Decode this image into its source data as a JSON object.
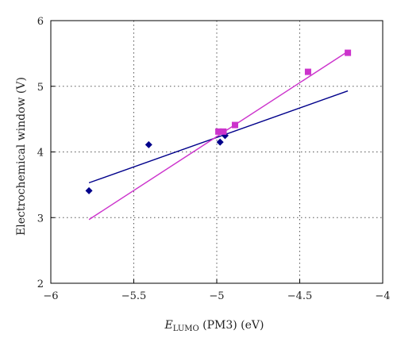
{
  "chart_data": {
    "type": "scatter",
    "xlabel": {
      "main": "E",
      "sub": "LUMO",
      "rest": " (PM3) (eV)"
    },
    "ylabel": "Electrochemical window (V)",
    "xlim": [
      -6,
      -4
    ],
    "ylim": [
      2,
      6
    ],
    "xticks": [
      -6,
      -5.5,
      -5,
      -4.5,
      -4
    ],
    "yticks": [
      2,
      3,
      4,
      5,
      6
    ],
    "xtick_labels": [
      "−6",
      "−5.5",
      "−5",
      "−4.5",
      "−4"
    ],
    "ytick_labels": [
      "2",
      "3",
      "4",
      "5",
      "6"
    ],
    "grid": true,
    "legend": "none",
    "series": [
      {
        "marker": "diamond",
        "color": "#00008b",
        "points": [
          {
            "x": -5.77,
            "y": 3.41
          },
          {
            "x": -5.41,
            "y": 4.11
          },
          {
            "x": -4.98,
            "y": 4.15
          },
          {
            "x": -4.95,
            "y": 4.25
          },
          {
            "x": -4.96,
            "y": 4.3
          }
        ],
        "trend": {
          "x1": -5.77,
          "y1": 3.53,
          "x2": -4.21,
          "y2": 4.93
        }
      },
      {
        "marker": "square",
        "color": "#cc33cc",
        "points": [
          {
            "x": -4.99,
            "y": 4.31
          },
          {
            "x": -4.96,
            "y": 4.31
          },
          {
            "x": -4.89,
            "y": 4.41
          },
          {
            "x": -4.45,
            "y": 5.22
          },
          {
            "x": -4.21,
            "y": 5.51
          }
        ],
        "trend": {
          "x1": -5.77,
          "y1": 2.97,
          "x2": -4.21,
          "y2": 5.53
        }
      }
    ]
  }
}
